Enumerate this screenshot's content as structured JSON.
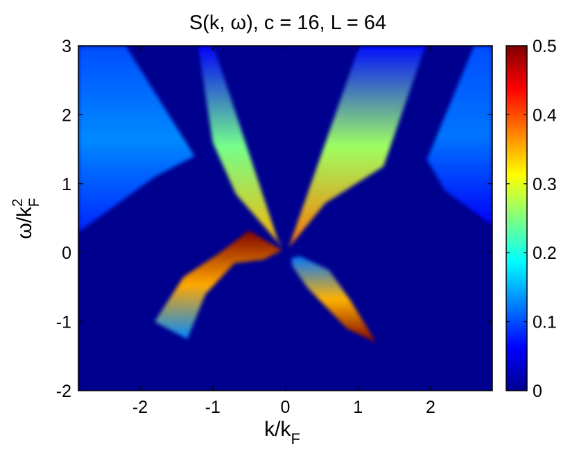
{
  "chart_data": {
    "type": "heatmap",
    "title": "S(k, ω), c = 16, L = 64",
    "xlabel": {
      "base": "k/k",
      "sub": "F"
    },
    "ylabel": {
      "base": "ω/k",
      "sup": "2",
      "sub": "F"
    },
    "xlim": [
      -2.85,
      2.85
    ],
    "ylim": [
      -2,
      3
    ],
    "xticks": [
      -2,
      -1,
      0,
      1,
      2
    ],
    "xtick_labels": [
      "-2",
      "-1",
      "0",
      "1",
      "2"
    ],
    "yticks": [
      -2,
      -1,
      0,
      1,
      2,
      3
    ],
    "ytick_labels": [
      "-2",
      "-1",
      "0",
      "1",
      "2",
      "3"
    ],
    "colorbar": {
      "range": [
        0,
        0.5
      ],
      "ticks": [
        0,
        0.1,
        0.2,
        0.3,
        0.4,
        0.5
      ],
      "tick_labels": [
        "0",
        "0.1",
        "0.2",
        "0.3",
        "0.4",
        "0.5"
      ],
      "colormap": "jet"
    },
    "background_color": "#00008f",
    "regions": [
      {
        "name": "upper-left branch",
        "intensity_low": 0.35,
        "intensity_high": 0.06,
        "polygon": [
          [
            -0.99,
            3
          ],
          [
            -0.11,
            0.2
          ],
          [
            -0.04,
            0.08
          ],
          [
            -0.68,
            0.85
          ],
          [
            -1.0,
            1.6
          ],
          [
            -1.2,
            3
          ]
        ]
      },
      {
        "name": "upper-right branch",
        "intensity_low": 0.38,
        "intensity_high": 0.07,
        "polygon": [
          [
            1.02,
            3
          ],
          [
            0.12,
            0.3
          ],
          [
            0.05,
            0.08
          ],
          [
            0.55,
            0.72
          ],
          [
            1.35,
            1.25
          ],
          [
            1.93,
            3
          ]
        ]
      },
      {
        "name": "lower-left arc",
        "intensity_low": 0.13,
        "intensity_high": 0.5,
        "polygon": [
          [
            -1.8,
            -1.0
          ],
          [
            -1.4,
            -0.35
          ],
          [
            -0.9,
            0.0
          ],
          [
            -0.5,
            0.32
          ],
          [
            -0.12,
            0.08
          ],
          [
            -0.04,
            0.04
          ],
          [
            -0.3,
            -0.1
          ],
          [
            -0.7,
            -0.15
          ],
          [
            -1.1,
            -0.6
          ],
          [
            -1.35,
            -1.25
          ]
        ]
      },
      {
        "name": "lower-right arc",
        "intensity_low": 0.5,
        "intensity_high": 0.12,
        "polygon": [
          [
            0.08,
            -0.08
          ],
          [
            0.2,
            -0.05
          ],
          [
            0.6,
            -0.25
          ],
          [
            0.9,
            -0.7
          ],
          [
            1.25,
            -1.3
          ],
          [
            0.85,
            -1.1
          ],
          [
            0.3,
            -0.5
          ],
          [
            0.1,
            -0.2
          ]
        ]
      },
      {
        "name": "outer-left band",
        "intensity_low": 0.08,
        "intensity_high": 0.1,
        "polygon": [
          [
            -2.85,
            3
          ],
          [
            -2.2,
            3
          ],
          [
            -1.25,
            1.4
          ],
          [
            -1.8,
            1.1
          ],
          [
            -2.85,
            0.3
          ]
        ]
      },
      {
        "name": "outer-right band",
        "intensity_low": 0.06,
        "intensity_high": 0.1,
        "polygon": [
          [
            2.85,
            3
          ],
          [
            2.6,
            3
          ],
          [
            1.95,
            1.35
          ],
          [
            2.2,
            0.9
          ],
          [
            2.85,
            0.4
          ]
        ]
      }
    ]
  }
}
